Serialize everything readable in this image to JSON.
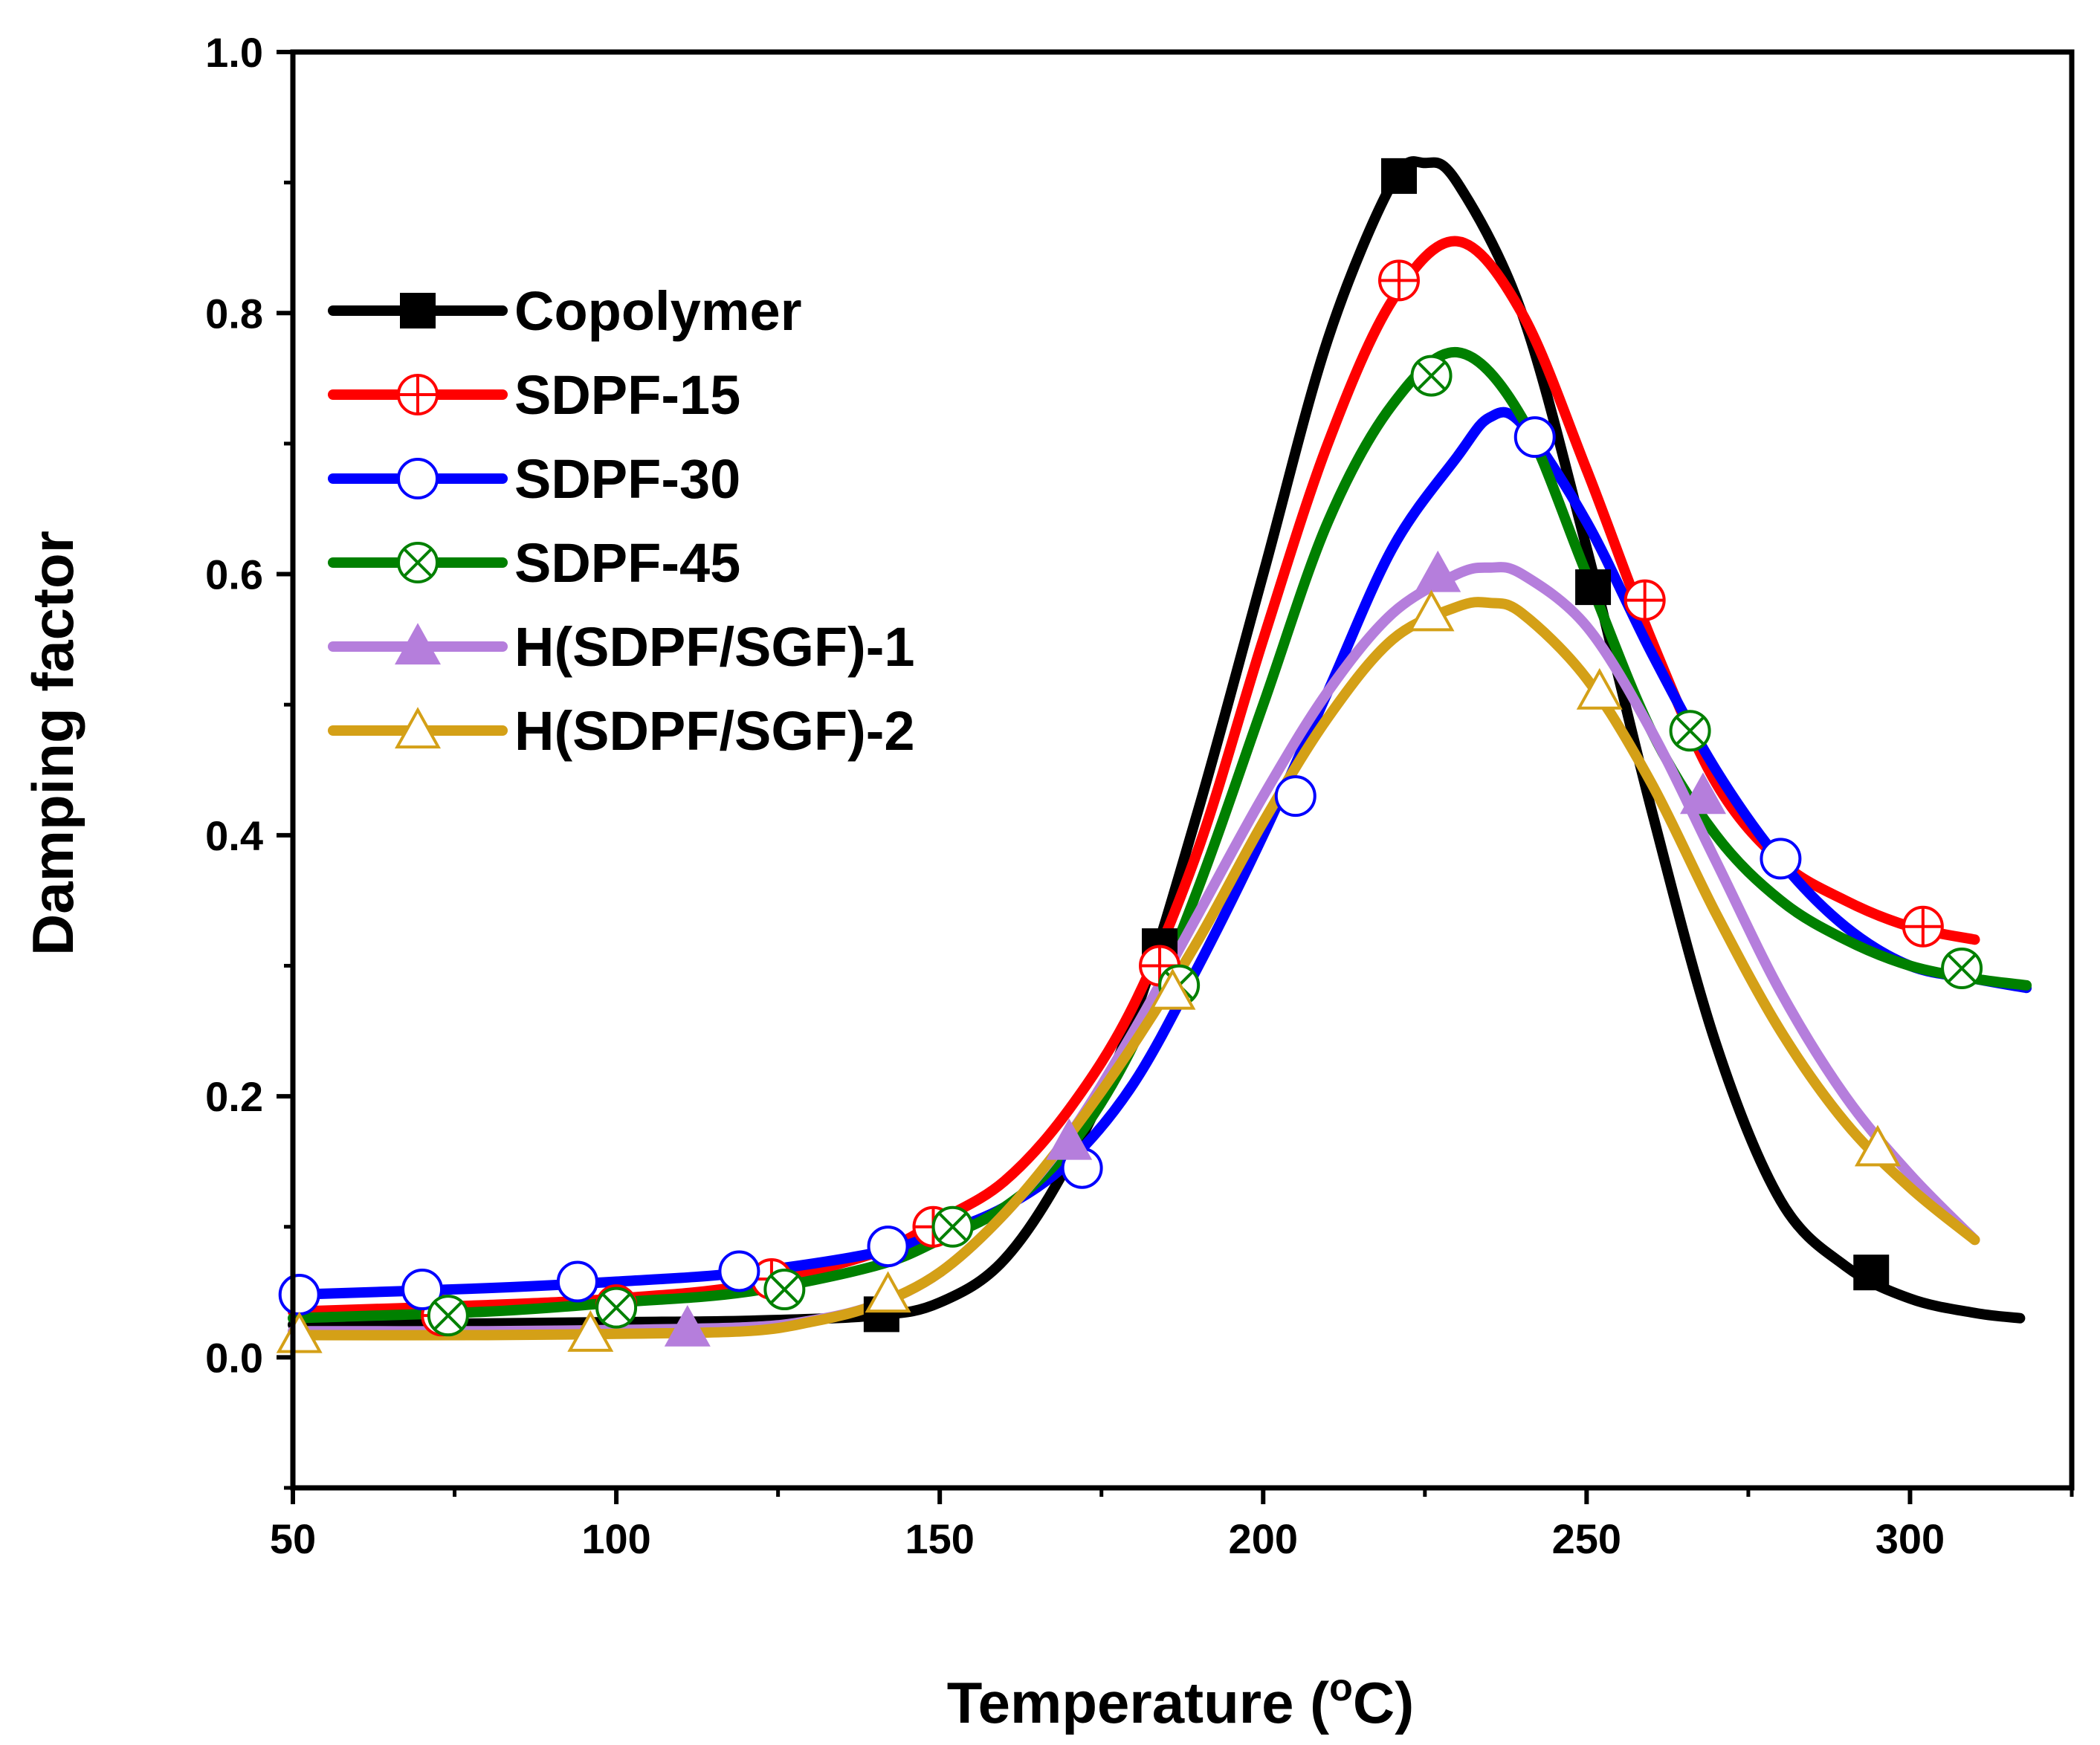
{
  "chart_data": {
    "type": "line",
    "title": "",
    "xlabel": "Temperature (",
    "xlabel_sup": "o",
    "xlabel_unit": "C)",
    "ylabel": "Damping factor",
    "xlim": [
      50,
      325
    ],
    "ylim": [
      -0.1,
      1.0
    ],
    "xticks": [
      50,
      100,
      150,
      200,
      250,
      300
    ],
    "xtick_labels": [
      "50",
      "100",
      "150",
      "200",
      "250",
      "300"
    ],
    "yticks": [
      0.0,
      0.2,
      0.4,
      0.6,
      0.8,
      1.0
    ],
    "ytick_labels": [
      "0.0",
      "0.2",
      "0.4",
      "0.6",
      "0.8",
      "1.0"
    ],
    "grid": false,
    "legend_position": "top-left",
    "series": [
      {
        "name": "Copolymer",
        "color": "#000000",
        "marker": "filled-square",
        "x": [
          50,
          80,
          100,
          120,
          140,
          150,
          160,
          170,
          180,
          190,
          200,
          210,
          220,
          225,
          230,
          240,
          250,
          260,
          270,
          280,
          290,
          300,
          310,
          317
        ],
        "y": [
          0.025,
          0.026,
          0.027,
          0.028,
          0.032,
          0.042,
          0.075,
          0.15,
          0.26,
          0.42,
          0.6,
          0.78,
          0.9,
          0.915,
          0.9,
          0.8,
          0.62,
          0.42,
          0.24,
          0.12,
          0.07,
          0.045,
          0.034,
          0.03
        ],
        "marker_x": [
          141,
          184,
          221,
          251,
          294
        ],
        "marker_y": [
          0.033,
          0.315,
          0.905,
          0.59,
          0.065
        ]
      },
      {
        "name": "SDPF-15",
        "color": "#ff0000",
        "marker": "crossed-circle",
        "x": [
          50,
          80,
          100,
          120,
          140,
          150,
          160,
          170,
          180,
          190,
          200,
          210,
          220,
          230,
          240,
          250,
          260,
          270,
          280,
          290,
          300,
          310
        ],
        "y": [
          0.035,
          0.04,
          0.045,
          0.055,
          0.08,
          0.105,
          0.135,
          0.19,
          0.27,
          0.39,
          0.55,
          0.7,
          0.81,
          0.855,
          0.8,
          0.68,
          0.55,
          0.44,
          0.38,
          0.35,
          0.33,
          0.32
        ],
        "marker_x": [
          73,
          100,
          124,
          149,
          184,
          221,
          259,
          302
        ],
        "marker_y": [
          0.032,
          0.04,
          0.06,
          0.1,
          0.3,
          0.825,
          0.58,
          0.33
        ]
      },
      {
        "name": "SDPF-30",
        "color": "#0000ff",
        "marker": "open-circle",
        "x": [
          50,
          80,
          100,
          120,
          140,
          150,
          160,
          170,
          180,
          190,
          200,
          210,
          220,
          230,
          235,
          240,
          250,
          260,
          270,
          280,
          290,
          300,
          310,
          318
        ],
        "y": [
          0.048,
          0.053,
          0.058,
          0.065,
          0.08,
          0.095,
          0.115,
          0.15,
          0.21,
          0.3,
          0.4,
          0.51,
          0.62,
          0.69,
          0.72,
          0.715,
          0.64,
          0.54,
          0.45,
          0.38,
          0.33,
          0.3,
          0.29,
          0.283
        ],
        "marker_x": [
          51,
          70,
          94,
          119,
          142,
          172,
          205,
          242,
          280
        ],
        "marker_y": [
          0.048,
          0.052,
          0.058,
          0.066,
          0.085,
          0.145,
          0.43,
          0.705,
          0.382
        ]
      },
      {
        "name": "SDPF-45",
        "color": "#008000",
        "marker": "crossed-open-circle",
        "x": [
          50,
          80,
          100,
          120,
          140,
          150,
          160,
          170,
          180,
          190,
          200,
          210,
          220,
          230,
          240,
          250,
          260,
          270,
          280,
          290,
          300,
          310,
          318
        ],
        "y": [
          0.03,
          0.035,
          0.042,
          0.05,
          0.07,
          0.09,
          0.115,
          0.16,
          0.24,
          0.36,
          0.5,
          0.64,
          0.73,
          0.77,
          0.72,
          0.6,
          0.48,
          0.4,
          0.35,
          0.32,
          0.3,
          0.29,
          0.285
        ],
        "marker_x": [
          74,
          100,
          126,
          152,
          187,
          226,
          266,
          308
        ],
        "marker_y": [
          0.032,
          0.038,
          0.052,
          0.1,
          0.285,
          0.752,
          0.48,
          0.298
        ]
      },
      {
        "name": "H(SDPF/SGF)-1",
        "color": "#b57edc",
        "marker": "filled-triangle",
        "x": [
          50,
          80,
          100,
          120,
          130,
          140,
          150,
          160,
          170,
          180,
          190,
          200,
          210,
          220,
          230,
          235,
          240,
          250,
          260,
          270,
          280,
          290,
          300,
          310
        ],
        "y": [
          0.02,
          0.02,
          0.021,
          0.023,
          0.028,
          0.04,
          0.065,
          0.11,
          0.17,
          0.25,
          0.34,
          0.43,
          0.51,
          0.57,
          0.6,
          0.605,
          0.6,
          0.56,
          0.48,
          0.38,
          0.28,
          0.2,
          0.14,
          0.09
        ],
        "marker_x": [
          111,
          170,
          227,
          268
        ],
        "marker_y": [
          0.022,
          0.165,
          0.6,
          0.43
        ]
      },
      {
        "name": "H(SDPF/SGF)-2",
        "color": "#d4a017",
        "marker": "open-triangle",
        "x": [
          50,
          80,
          100,
          120,
          130,
          140,
          150,
          160,
          170,
          180,
          190,
          200,
          210,
          220,
          230,
          235,
          240,
          250,
          260,
          270,
          280,
          290,
          300,
          310
        ],
        "y": [
          0.017,
          0.017,
          0.018,
          0.02,
          0.027,
          0.04,
          0.065,
          0.11,
          0.17,
          0.24,
          0.32,
          0.41,
          0.49,
          0.55,
          0.575,
          0.578,
          0.57,
          0.52,
          0.44,
          0.34,
          0.25,
          0.18,
          0.13,
          0.09
        ],
        "marker_x": [
          51,
          96,
          142,
          186,
          226,
          252,
          295
        ],
        "marker_y": [
          0.017,
          0.018,
          0.048,
          0.28,
          0.57,
          0.51,
          0.16
        ]
      }
    ]
  }
}
